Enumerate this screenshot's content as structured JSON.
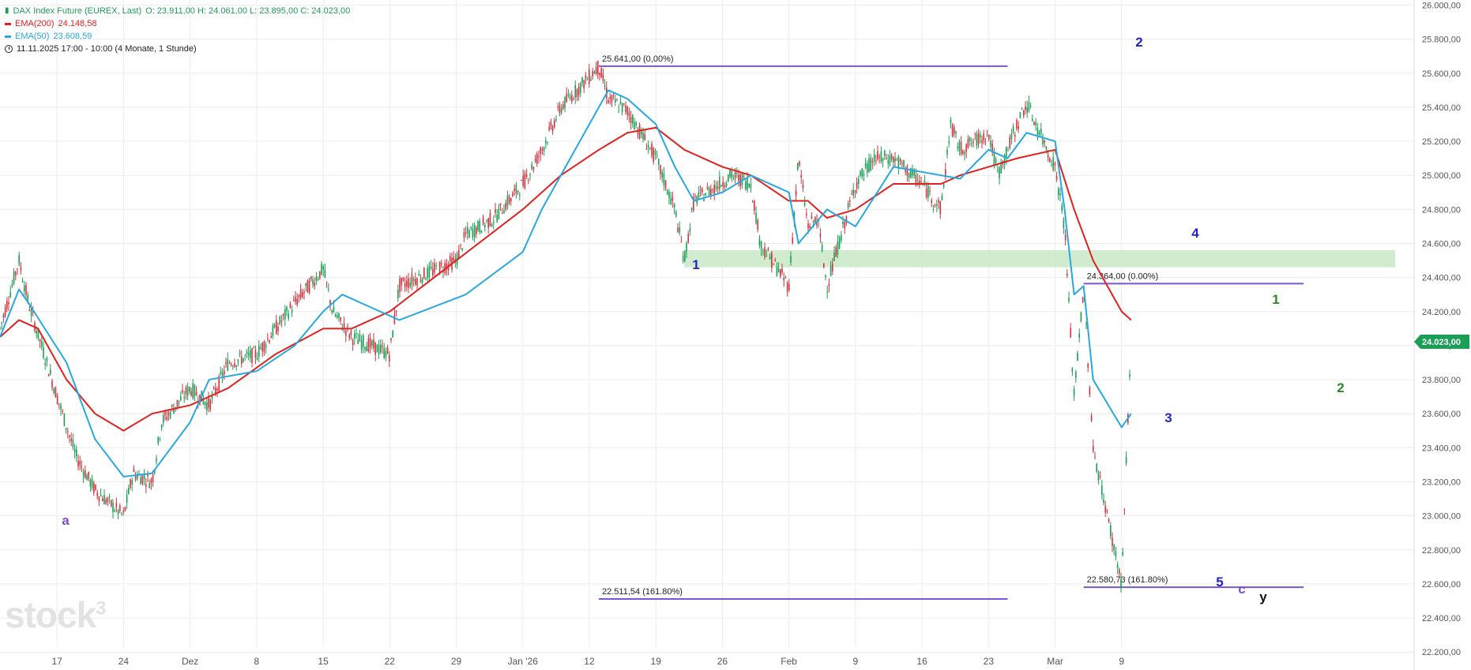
{
  "legend": {
    "symbol_title": "DAX Index Future (EUREX, Last)",
    "ohlc": "O: 23.911,00  H: 24.061,00  L: 23.895,00  C: 24.023,00",
    "ema200_name": "EMA(200)",
    "ema200_value": "24.148,58",
    "ema50_name": "EMA(50)",
    "ema50_value": "23.608,59",
    "range": "11.11.2025 17:00 - 10:00  (4 Monate, 1 Stunde)"
  },
  "watermark": {
    "text": "stock",
    "sup": "3"
  },
  "colors": {
    "ema200": "#e0211f",
    "ema50": "#27a8e0",
    "up": "#1b9e55",
    "down": "#d2333c",
    "wave_blue": "#2323c8",
    "wave_green": "#2a8a2a",
    "wave_purple": "#7c4dcc",
    "fib_line": "#7a55d6",
    "zone": "#cbe9c9",
    "price_tag": "#1b9e55",
    "grid": "#ececec"
  },
  "chart_data": {
    "type": "line",
    "instrument": "DAX Index Future (EUREX, Last)",
    "interval": "1 Stunde",
    "y_axis": {
      "ticks": [
        "22.200,00",
        "22.400,00",
        "22.600,00",
        "22.800,00",
        "23.000,00",
        "23.200,00",
        "23.400,00",
        "23.600,00",
        "23.800,00",
        "24.000,00",
        "24.200,00",
        "24.400,00",
        "24.600,00",
        "24.800,00",
        "25.000,00",
        "25.200,00",
        "25.400,00",
        "25.600,00",
        "25.800,00",
        "26.000,00"
      ],
      "range": [
        22150,
        26030
      ]
    },
    "x_axis": {
      "ticks": [
        "17",
        "24",
        "Dez",
        "8",
        "15",
        "22",
        "29",
        "Jan '26",
        "12",
        "19",
        "26",
        "Feb",
        "9",
        "16",
        "23",
        "Mar",
        "9"
      ],
      "ticks_period_start": [
        "2025-11-17",
        "2025-11-24",
        "2025-12-01",
        "2025-12-08",
        "2025-12-15",
        "2025-12-22",
        "2025-12-29",
        "2026-01-05",
        "2026-01-12",
        "2026-01-19",
        "2026-01-26",
        "2026-02-02",
        "2026-02-09",
        "2026-02-16",
        "2026-02-23",
        "2026-03-02",
        "2026-03-09"
      ],
      "note": "daily labels at session starts; ticks approx one per week"
    },
    "price_path": {
      "name": "DAX Index Future",
      "x": [
        "2025-11-11",
        "2025-11-13",
        "2025-11-14",
        "2025-11-17",
        "2025-11-19",
        "2025-11-21",
        "2025-11-24",
        "2025-11-25",
        "2025-11-27",
        "2025-11-28",
        "2025-12-01",
        "2025-12-03",
        "2025-12-05",
        "2025-12-08",
        "2025-12-10",
        "2025-12-12",
        "2025-12-15",
        "2025-12-16",
        "2025-12-18",
        "2025-12-22",
        "2025-12-23",
        "2025-12-29",
        "2025-12-30",
        "2026-01-02",
        "2026-01-05",
        "2026-01-07",
        "2026-01-09",
        "2026-01-13",
        "2026-01-14",
        "2026-01-16",
        "2026-01-19",
        "2026-01-21",
        "2026-01-22",
        "2026-01-23",
        "2026-01-27",
        "2026-01-29",
        "2026-01-30",
        "2026-02-02",
        "2026-02-03",
        "2026-02-04",
        "2026-02-05",
        "2026-02-06",
        "2026-02-09",
        "2026-02-11",
        "2026-02-13",
        "2026-02-16",
        "2026-02-18",
        "2026-02-19",
        "2026-02-20",
        "2026-02-23",
        "2026-02-24",
        "2026-02-26",
        "2026-02-27",
        "2026-03-02",
        "2026-03-03",
        "2026-03-04",
        "2026-03-05",
        "2026-03-06",
        "2026-03-09",
        "2026-03-10"
      ],
      "y": [
        24100,
        24500,
        24250,
        23700,
        23350,
        23150,
        23000,
        23250,
        23200,
        23550,
        23750,
        23650,
        23900,
        23950,
        24100,
        24250,
        24450,
        24200,
        24050,
        23950,
        24350,
        24500,
        24650,
        24750,
        24950,
        25150,
        25400,
        25640,
        25450,
        25380,
        25100,
        24800,
        24500,
        24850,
        25000,
        24950,
        24600,
        24350,
        25100,
        24700,
        24750,
        24350,
        24950,
        25100,
        25100,
        24950,
        24800,
        25300,
        25150,
        25250,
        25000,
        25300,
        25420,
        25050,
        24700,
        23700,
        24350,
        23400,
        22600,
        24050
      ]
    },
    "ema50": {
      "name": "EMA(50)",
      "x": [
        "2025-11-11",
        "2025-11-13",
        "2025-11-14",
        "2025-11-18",
        "2025-11-21",
        "2025-11-24",
        "2025-11-27",
        "2025-12-01",
        "2025-12-03",
        "2025-12-08",
        "2025-12-12",
        "2025-12-15",
        "2025-12-17",
        "2025-12-19",
        "2025-12-23",
        "2025-12-30",
        "2026-01-05",
        "2026-01-07",
        "2026-01-13",
        "2026-01-14",
        "2026-01-16",
        "2026-01-19",
        "2026-01-21",
        "2026-01-23",
        "2026-01-26",
        "2026-01-29",
        "2026-02-02",
        "2026-02-03",
        "2026-02-06",
        "2026-02-09",
        "2026-02-13",
        "2026-02-18",
        "2026-02-20",
        "2026-02-23",
        "2026-02-25",
        "2026-02-27",
        "2026-03-02",
        "2026-03-03",
        "2026-03-04",
        "2026-03-05",
        "2026-03-06",
        "2026-03-09",
        "2026-03-10"
      ],
      "y": [
        24050,
        24330,
        24250,
        23900,
        23450,
        23230,
        23250,
        23550,
        23800,
        23850,
        24000,
        24200,
        24300,
        24250,
        24150,
        24300,
        24550,
        24800,
        25400,
        25500,
        25450,
        25300,
        25050,
        24850,
        24900,
        25000,
        24900,
        24600,
        24800,
        24700,
        25050,
        25000,
        24980,
        25150,
        25100,
        25250,
        25200,
        24800,
        24300,
        24350,
        23800,
        23520,
        23600
      ]
    },
    "ema200": {
      "name": "EMA(200)",
      "x": [
        "2025-11-11",
        "2025-11-13",
        "2025-11-15",
        "2025-11-18",
        "2025-11-21",
        "2025-11-24",
        "2025-11-27",
        "2025-12-01",
        "2025-12-05",
        "2025-12-10",
        "2025-12-15",
        "2025-12-18",
        "2025-12-22",
        "2025-12-29",
        "2026-01-05",
        "2026-01-09",
        "2026-01-13",
        "2026-01-16",
        "2026-01-19",
        "2026-01-22",
        "2026-01-26",
        "2026-01-29",
        "2026-02-02",
        "2026-02-04",
        "2026-02-06",
        "2026-02-09",
        "2026-02-13",
        "2026-02-18",
        "2026-02-20",
        "2026-02-23",
        "2026-02-26",
        "2026-03-02",
        "2026-03-04",
        "2026-03-06",
        "2026-03-09",
        "2026-03-10"
      ],
      "y": [
        24050,
        24150,
        24100,
        23800,
        23600,
        23500,
        23600,
        23650,
        23750,
        23950,
        24100,
        24100,
        24200,
        24500,
        24800,
        25000,
        25150,
        25250,
        25280,
        25150,
        25050,
        25000,
        24850,
        24850,
        24750,
        24800,
        24950,
        24950,
        25000,
        25050,
        25100,
        25150,
        24800,
        24500,
        24200,
        24150
      ]
    },
    "fib_lines": [
      {
        "label": "25.641,00 (0,00%)",
        "value": 25641.0
      },
      {
        "label": "22.511,54 (161.80%)",
        "value": 22511.54
      },
      {
        "label": "24.364,00 (0.00%)",
        "value": 24364.0
      },
      {
        "label": "22.580,73 (161.80%)",
        "value": 22580.73
      }
    ],
    "support_zone": {
      "from": 24460,
      "to": 24560
    },
    "wave_labels": [
      {
        "text": "a",
        "color": "purple"
      },
      {
        "text": "1",
        "color": "blue"
      },
      {
        "text": "2",
        "color": "blue"
      },
      {
        "text": "3",
        "color": "blue"
      },
      {
        "text": "4",
        "color": "blue"
      },
      {
        "text": "5",
        "color": "blue"
      },
      {
        "text": "c",
        "color": "purple"
      },
      {
        "text": "y",
        "color": "black"
      },
      {
        "text": "1",
        "color": "green"
      },
      {
        "text": "2",
        "color": "green"
      }
    ],
    "last_price": {
      "value": 24023,
      "label": "24.023,00"
    },
    "grid": true
  }
}
